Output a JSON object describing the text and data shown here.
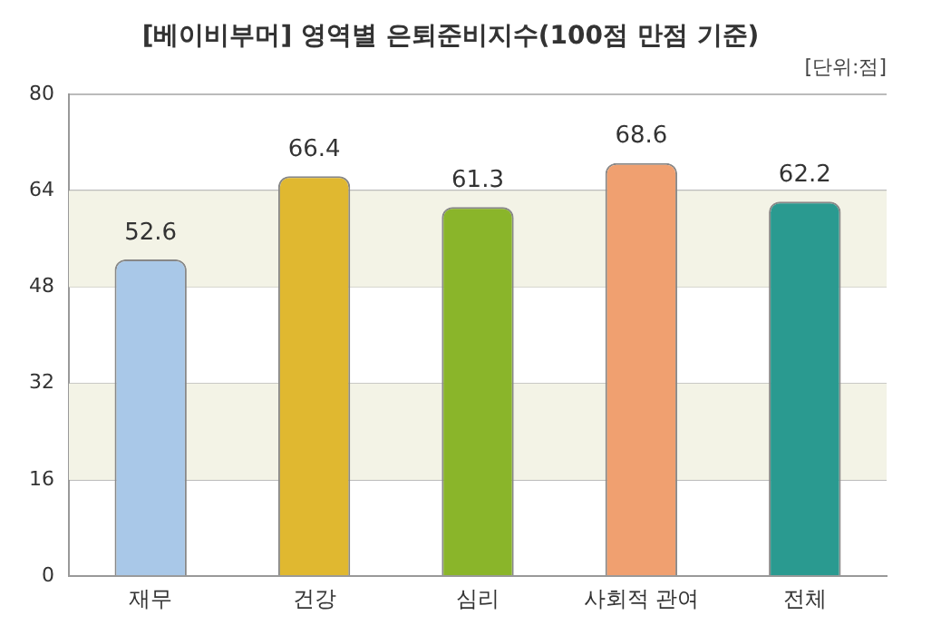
{
  "chart_data": {
    "type": "bar",
    "title": "[베이비부머] 영역별 은퇴준비지수(100점 만점 기준)",
    "subtitle": "[단위:점]",
    "categories": [
      "재무",
      "건강",
      "심리",
      "사회적 관여",
      "전체"
    ],
    "values": [
      52.6,
      66.4,
      61.3,
      68.6,
      62.2
    ],
    "colors": [
      "#a9c8e8",
      "#e0b830",
      "#8ab52a",
      "#f0a070",
      "#2a9a90"
    ],
    "ylim": [
      0,
      80
    ],
    "yticks": [
      0,
      16,
      32,
      48,
      64,
      80
    ],
    "grid": "y",
    "data_labels": true,
    "bands": [
      {
        "axis": "y",
        "from": 16,
        "to": 32,
        "color": "#f3f3e6"
      },
      {
        "axis": "y",
        "from": 48,
        "to": 64,
        "color": "#f3f3e6"
      }
    ]
  }
}
